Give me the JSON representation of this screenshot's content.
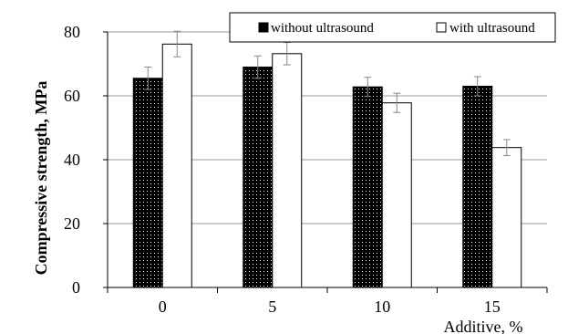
{
  "chart_data": {
    "type": "bar",
    "categories": [
      "0",
      "5",
      "10",
      "15"
    ],
    "series": [
      {
        "name": "without ultrasound",
        "values": [
          65.5,
          69,
          62.8,
          63
        ],
        "errors": [
          3.5,
          3.5,
          3,
          3
        ],
        "pattern": "dotted-black"
      },
      {
        "name": "with ultrasound",
        "values": [
          76.2,
          73.2,
          57.8,
          43.8
        ],
        "errors": [
          4,
          3.5,
          3,
          2.5
        ],
        "pattern": "white"
      }
    ],
    "title": "",
    "xlabel": "Additive, %",
    "ylabel": "Compressive strength, MPa",
    "ylim": [
      0,
      80
    ],
    "yticks": [
      "0",
      "20",
      "40",
      "60",
      "80"
    ],
    "grid": true,
    "legend_position": "top"
  }
}
